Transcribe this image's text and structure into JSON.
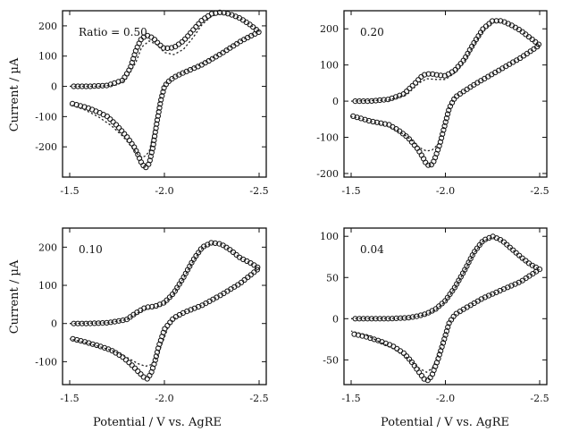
{
  "figure": {
    "ylabel": "Current / µA",
    "xlabel": "Potential / V vs. AgRE"
  },
  "chart_data": [
    {
      "type": "scatter",
      "label": "Ratio = 0.50",
      "xlim": [
        -1.5,
        -2.5
      ],
      "ylim": [
        -300,
        250
      ],
      "xticks": [
        -1.5,
        -2.0,
        -2.5
      ],
      "xtick_labels": [
        "-1.5",
        "-2.0",
        "-2.5"
      ],
      "yticks": [
        -200,
        -100,
        0,
        100,
        200
      ],
      "ytick_labels": [
        "-200",
        "-100",
        "0",
        "100",
        "200"
      ],
      "series": [
        {
          "style": "circles",
          "forward": {
            "x": [
              -1.5,
              -1.6,
              -1.7,
              -1.78,
              -1.82,
              -1.85,
              -1.88,
              -1.91,
              -1.94,
              -1.97,
              -2.0,
              -2.05,
              -2.1,
              -2.15,
              -2.2,
              -2.25,
              -2.3,
              -2.35,
              -2.4,
              -2.45,
              -2.5
            ],
            "y": [
              0,
              0,
              3,
              20,
              60,
              120,
              160,
              168,
              160,
              140,
              125,
              128,
              150,
              185,
              220,
              240,
              245,
              238,
              225,
              205,
              180
            ]
          },
          "reverse": {
            "x": [
              -2.5,
              -2.45,
              -2.4,
              -2.35,
              -2.3,
              -2.25,
              -2.2,
              -2.15,
              -2.1,
              -2.05,
              -2.02,
              -2.0,
              -1.98,
              -1.96,
              -1.94,
              -1.92,
              -1.9,
              -1.88,
              -1.86,
              -1.84,
              -1.8,
              -1.75,
              -1.7,
              -1.65,
              -1.6,
              -1.55,
              -1.5
            ],
            "y": [
              180,
              165,
              148,
              128,
              108,
              90,
              72,
              58,
              45,
              30,
              15,
              0,
              -50,
              -120,
              -200,
              -255,
              -270,
              -255,
              -225,
              -200,
              -165,
              -130,
              -100,
              -85,
              -72,
              -63,
              -55
            ]
          }
        },
        {
          "style": "dotted",
          "forward": {
            "x": [
              -1.5,
              -1.65,
              -1.75,
              -1.8,
              -1.85,
              -1.88,
              -1.92,
              -1.96,
              -2.0,
              -2.05,
              -2.1,
              -2.15,
              -2.2,
              -2.25,
              -2.3,
              -2.35,
              -2.4,
              -2.45,
              -2.5
            ],
            "y": [
              0,
              0,
              5,
              25,
              80,
              130,
              150,
              138,
              112,
              105,
              122,
              160,
              205,
              232,
              242,
              238,
              225,
              205,
              182
            ]
          },
          "reverse": {
            "x": [
              -2.5,
              -2.4,
              -2.3,
              -2.2,
              -2.1,
              -2.05,
              -2.0,
              -1.97,
              -1.94,
              -1.92,
              -1.9,
              -1.88,
              -1.86,
              -1.82,
              -1.78,
              -1.72,
              -1.65,
              -1.58,
              -1.5
            ],
            "y": [
              182,
              150,
              110,
              75,
              45,
              30,
              5,
              -60,
              -160,
              -215,
              -230,
              -235,
              -225,
              -195,
              -165,
              -130,
              -100,
              -78,
              -60
            ]
          }
        }
      ]
    },
    {
      "type": "scatter",
      "label": "0.20",
      "xlim": [
        -1.5,
        -2.5
      ],
      "ylim": [
        -210,
        250
      ],
      "xticks": [
        -1.5,
        -2.0,
        -2.5
      ],
      "xtick_labels": [
        "-1.5",
        "-2.0",
        "-2.5"
      ],
      "yticks": [
        -200,
        -100,
        0,
        100,
        200
      ],
      "ytick_labels": [
        "-200",
        "-100",
        "0",
        "100",
        "200"
      ],
      "series": [
        {
          "style": "circles",
          "forward": {
            "x": [
              -1.5,
              -1.6,
              -1.7,
              -1.78,
              -1.84,
              -1.88,
              -1.92,
              -1.96,
              -2.0,
              -2.05,
              -2.1,
              -2.15,
              -2.2,
              -2.25,
              -2.3,
              -2.35,
              -2.4,
              -2.45,
              -2.5
            ],
            "y": [
              0,
              0,
              5,
              20,
              50,
              72,
              76,
              72,
              70,
              85,
              115,
              160,
              200,
              222,
              222,
              210,
              195,
              175,
              155
            ]
          },
          "reverse": {
            "x": [
              -2.5,
              -2.4,
              -2.3,
              -2.2,
              -2.15,
              -2.1,
              -2.05,
              -2.02,
              -2.0,
              -1.97,
              -1.94,
              -1.92,
              -1.9,
              -1.88,
              -1.85,
              -1.8,
              -1.75,
              -1.7,
              -1.6,
              -1.5
            ],
            "y": [
              155,
              120,
              90,
              60,
              45,
              28,
              10,
              -20,
              -60,
              -120,
              -165,
              -180,
              -175,
              -155,
              -130,
              -100,
              -80,
              -65,
              -55,
              -40
            ]
          }
        },
        {
          "style": "dotted",
          "forward": {
            "x": [
              -1.5,
              -1.7,
              -1.8,
              -1.86,
              -1.9,
              -1.95,
              -2.0,
              -2.05,
              -2.1,
              -2.15,
              -2.2,
              -2.25,
              -2.3,
              -2.35,
              -2.4,
              -2.45,
              -2.5
            ],
            "y": [
              0,
              3,
              20,
              50,
              62,
              60,
              60,
              78,
              110,
              155,
              195,
              218,
              220,
              210,
              195,
              175,
              155
            ]
          },
          "reverse": {
            "x": [
              -2.5,
              -2.4,
              -2.3,
              -2.2,
              -2.1,
              -2.05,
              -2.02,
              -1.99,
              -1.96,
              -1.93,
              -1.9,
              -1.86,
              -1.82,
              -1.78,
              -1.7,
              -1.6,
              -1.5
            ],
            "y": [
              155,
              120,
              90,
              60,
              28,
              12,
              -20,
              -75,
              -120,
              -135,
              -138,
              -128,
              -108,
              -92,
              -70,
              -55,
              -42
            ]
          }
        }
      ]
    },
    {
      "type": "scatter",
      "label": "0.10",
      "xlim": [
        -1.5,
        -2.5
      ],
      "ylim": [
        -160,
        250
      ],
      "xticks": [
        -1.5,
        -2.0,
        -2.5
      ],
      "xtick_labels": [
        "-1.5",
        "-2.0",
        "-2.5"
      ],
      "yticks": [
        -100,
        0,
        100,
        200
      ],
      "ytick_labels": [
        "-100",
        "0",
        "100",
        "200"
      ],
      "series": [
        {
          "style": "circles",
          "forward": {
            "x": [
              -1.5,
              -1.6,
              -1.7,
              -1.8,
              -1.85,
              -1.9,
              -1.95,
              -2.0,
              -2.05,
              -2.1,
              -2.15,
              -2.2,
              -2.25,
              -2.3,
              -2.35,
              -2.4,
              -2.45,
              -2.5
            ],
            "y": [
              0,
              0,
              2,
              10,
              28,
              42,
              45,
              55,
              80,
              120,
              165,
              200,
              212,
              208,
              192,
              172,
              160,
              145
            ]
          },
          "reverse": {
            "x": [
              -2.5,
              -2.4,
              -2.3,
              -2.2,
              -2.1,
              -2.05,
              -2.0,
              -1.97,
              -1.95,
              -1.93,
              -1.91,
              -1.89,
              -1.86,
              -1.82,
              -1.78,
              -1.72,
              -1.65,
              -1.58,
              -1.5
            ],
            "y": [
              145,
              105,
              75,
              48,
              28,
              15,
              -15,
              -60,
              -100,
              -130,
              -145,
              -140,
              -125,
              -105,
              -88,
              -70,
              -58,
              -48,
              -38
            ]
          }
        },
        {
          "style": "dotted",
          "forward": {
            "x": [
              -1.5,
              -1.7,
              -1.8,
              -1.86,
              -1.9,
              -1.95,
              -2.0,
              -2.05,
              -2.1,
              -2.15,
              -2.2,
              -2.25,
              -2.3,
              -2.35,
              -2.4,
              -2.5
            ],
            "y": [
              0,
              2,
              10,
              28,
              38,
              42,
              52,
              78,
              118,
              162,
              198,
              210,
              208,
              192,
              172,
              145
            ]
          },
          "reverse": {
            "x": [
              -2.5,
              -2.4,
              -2.3,
              -2.2,
              -2.1,
              -2.05,
              -2.02,
              -1.99,
              -1.96,
              -1.93,
              -1.9,
              -1.86,
              -1.8,
              -1.72,
              -1.6,
              -1.5
            ],
            "y": [
              145,
              105,
              75,
              48,
              28,
              12,
              -10,
              -50,
              -90,
              -108,
              -112,
              -105,
              -88,
              -70,
              -52,
              -40
            ]
          }
        }
      ]
    },
    {
      "type": "scatter",
      "label": "0.04",
      "xlim": [
        -1.5,
        -2.5
      ],
      "ylim": [
        -80,
        110
      ],
      "xticks": [
        -1.5,
        -2.0,
        -2.5
      ],
      "xtick_labels": [
        "-1.5",
        "-2.0",
        "-2.5"
      ],
      "yticks": [
        -50,
        0,
        50,
        100
      ],
      "ytick_labels": [
        "-50",
        "0",
        "50",
        "100"
      ],
      "series": [
        {
          "style": "circles",
          "forward": {
            "x": [
              -1.5,
              -1.6,
              -1.7,
              -1.8,
              -1.85,
              -1.9,
              -1.95,
              -2.0,
              -2.05,
              -2.1,
              -2.15,
              -2.2,
              -2.25,
              -2.3,
              -2.35,
              -2.4,
              -2.45,
              -2.5
            ],
            "y": [
              0,
              0,
              0,
              1,
              3,
              6,
              12,
              22,
              38,
              58,
              80,
              95,
              100,
              95,
              85,
              75,
              66,
              60
            ]
          },
          "reverse": {
            "x": [
              -2.5,
              -2.4,
              -2.3,
              -2.2,
              -2.1,
              -2.05,
              -2.02,
              -1.99,
              -1.96,
              -1.93,
              -1.91,
              -1.89,
              -1.86,
              -1.82,
              -1.78,
              -1.72,
              -1.65,
              -1.58,
              -1.5
            ],
            "y": [
              60,
              45,
              35,
              25,
              12,
              5,
              -5,
              -28,
              -50,
              -68,
              -75,
              -74,
              -65,
              -52,
              -42,
              -33,
              -27,
              -22,
              -18
            ]
          }
        },
        {
          "style": "dotted",
          "forward": {
            "x": [
              -1.5,
              -1.7,
              -1.8,
              -1.9,
              -1.95,
              -2.0,
              -2.05,
              -2.1,
              -2.15,
              -2.2,
              -2.25,
              -2.3,
              -2.35,
              -2.4,
              -2.45,
              -2.5
            ],
            "y": [
              0,
              0,
              1,
              5,
              11,
              21,
              37,
              57,
              79,
              94,
              99,
              95,
              85,
              74,
              66,
              60
            ]
          },
          "reverse": {
            "x": [
              -2.5,
              -2.4,
              -2.3,
              -2.2,
              -2.1,
              -2.05,
              -2.02,
              -1.99,
              -1.96,
              -1.93,
              -1.9,
              -1.86,
              -1.8,
              -1.72,
              -1.65,
              -1.58,
              -1.5
            ],
            "y": [
              60,
              45,
              35,
              25,
              12,
              4,
              -6,
              -26,
              -46,
              -60,
              -65,
              -60,
              -48,
              -36,
              -28,
              -20,
              -15
            ]
          }
        }
      ]
    }
  ]
}
